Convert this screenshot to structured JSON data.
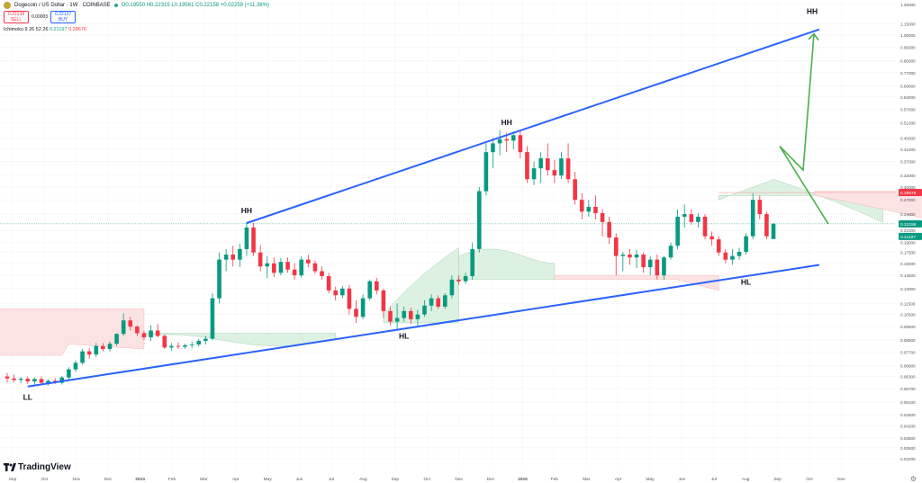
{
  "header": {
    "symbol": "Dogecoin / US Dollar · 1W · COINBASE",
    "ohlc": "O0.19550 H0.22315 L0.19561 C0.22158 +0.02259 (+11.36%)"
  },
  "trade": {
    "sell_price": "0.22134",
    "sell_label": "SELL",
    "spread": "0.00003",
    "buy_price": "0.22137",
    "buy_label": "BUY"
  },
  "indicator": {
    "name": "Ichimoku 9 26 52 26",
    "value1": "0.21197",
    "value2": "0.28676"
  },
  "brand": "TradingView",
  "colors": {
    "up": "#089981",
    "down": "#f23645",
    "trendline": "#2962ff",
    "arrow": "#4caf50",
    "cloud_bull": "#d7efdd",
    "cloud_bear": "#fbdede"
  },
  "chart_data": {
    "type": "candlestick",
    "y_scale": "log",
    "y_ticks": [
      "1.35000",
      "1.15000",
      "1.05000",
      "0.95000",
      "0.85000",
      "0.77000",
      "0.69000",
      "0.63000",
      "0.57000",
      "0.51000",
      "0.45000",
      "0.41000",
      "0.37000",
      "0.33000",
      "0.30000",
      "0.27000",
      "0.24000",
      "0.21000",
      "0.19000",
      "0.17500",
      "0.16000",
      "0.14500",
      "0.13000",
      "0.11500",
      "0.10500",
      "0.09500",
      "0.08500",
      "0.07700",
      "0.06900",
      "0.06300",
      "0.05700",
      "0.05100",
      "0.04600",
      "0.04200",
      "0.03800",
      "0.03500",
      "0.03200"
    ],
    "x_ticks": [
      "Sep",
      "Oct",
      "Nov",
      "Dec",
      "2024",
      "Feb",
      "Mar",
      "Apr",
      "May",
      "Jun",
      "Jul",
      "Aug",
      "Sep",
      "Oct",
      "Nov",
      "Dec",
      "2025",
      "Feb",
      "Mar",
      "Apr",
      "May",
      "Jun",
      "Jul",
      "Aug",
      "Sep",
      "Oct",
      "Nov"
    ],
    "price_labels": [
      {
        "value": "0.28676",
        "kind": "lead2"
      },
      {
        "value": "0.22158",
        "kind": "current"
      },
      {
        "value": "0.21197",
        "kind": "lead1"
      }
    ],
    "annotations": [
      "LL",
      "HH",
      "HL",
      "HH",
      "HL",
      "HH"
    ],
    "candles": [
      {
        "o": 0.063,
        "h": 0.0648,
        "l": 0.06,
        "c": 0.062
      },
      {
        "o": 0.062,
        "h": 0.064,
        "l": 0.06,
        "c": 0.0612
      },
      {
        "o": 0.0612,
        "h": 0.0628,
        "l": 0.0595,
        "c": 0.0618
      },
      {
        "o": 0.0618,
        "h": 0.063,
        "l": 0.0592,
        "c": 0.0605
      },
      {
        "o": 0.0605,
        "h": 0.0625,
        "l": 0.059,
        "c": 0.0617
      },
      {
        "o": 0.0617,
        "h": 0.063,
        "l": 0.0588,
        "c": 0.0598
      },
      {
        "o": 0.0598,
        "h": 0.0615,
        "l": 0.0585,
        "c": 0.0608
      },
      {
        "o": 0.0608,
        "h": 0.0622,
        "l": 0.0592,
        "c": 0.0598
      },
      {
        "o": 0.0598,
        "h": 0.0632,
        "l": 0.059,
        "c": 0.0625
      },
      {
        "o": 0.0625,
        "h": 0.068,
        "l": 0.0612,
        "c": 0.0668
      },
      {
        "o": 0.0668,
        "h": 0.072,
        "l": 0.0655,
        "c": 0.0705
      },
      {
        "o": 0.0705,
        "h": 0.079,
        "l": 0.0695,
        "c": 0.0775
      },
      {
        "o": 0.0775,
        "h": 0.0795,
        "l": 0.073,
        "c": 0.0755
      },
      {
        "o": 0.0755,
        "h": 0.083,
        "l": 0.074,
        "c": 0.081
      },
      {
        "o": 0.081,
        "h": 0.083,
        "l": 0.0775,
        "c": 0.079
      },
      {
        "o": 0.079,
        "h": 0.084,
        "l": 0.0775,
        "c": 0.0825
      },
      {
        "o": 0.0825,
        "h": 0.09,
        "l": 0.081,
        "c": 0.0895
      },
      {
        "o": 0.0895,
        "h": 0.106,
        "l": 0.088,
        "c": 0.1
      },
      {
        "o": 0.1,
        "h": 0.103,
        "l": 0.092,
        "c": 0.095
      },
      {
        "o": 0.095,
        "h": 0.096,
        "l": 0.088,
        "c": 0.09
      },
      {
        "o": 0.09,
        "h": 0.092,
        "l": 0.085,
        "c": 0.087
      },
      {
        "o": 0.087,
        "h": 0.096,
        "l": 0.0845,
        "c": 0.092
      },
      {
        "o": 0.092,
        "h": 0.097,
        "l": 0.087,
        "c": 0.088
      },
      {
        "o": 0.088,
        "h": 0.089,
        "l": 0.079,
        "c": 0.08
      },
      {
        "o": 0.08,
        "h": 0.083,
        "l": 0.078,
        "c": 0.081
      },
      {
        "o": 0.081,
        "h": 0.0835,
        "l": 0.079,
        "c": 0.0805
      },
      {
        "o": 0.0805,
        "h": 0.0825,
        "l": 0.079,
        "c": 0.0815
      },
      {
        "o": 0.0815,
        "h": 0.084,
        "l": 0.0795,
        "c": 0.082
      },
      {
        "o": 0.082,
        "h": 0.086,
        "l": 0.0805,
        "c": 0.0845
      },
      {
        "o": 0.0845,
        "h": 0.088,
        "l": 0.082,
        "c": 0.086
      },
      {
        "o": 0.086,
        "h": 0.125,
        "l": 0.085,
        "c": 0.12
      },
      {
        "o": 0.12,
        "h": 0.175,
        "l": 0.115,
        "c": 0.165
      },
      {
        "o": 0.165,
        "h": 0.18,
        "l": 0.15,
        "c": 0.172
      },
      {
        "o": 0.172,
        "h": 0.185,
        "l": 0.156,
        "c": 0.165
      },
      {
        "o": 0.165,
        "h": 0.188,
        "l": 0.155,
        "c": 0.18
      },
      {
        "o": 0.18,
        "h": 0.225,
        "l": 0.17,
        "c": 0.215
      },
      {
        "o": 0.215,
        "h": 0.223,
        "l": 0.17,
        "c": 0.175
      },
      {
        "o": 0.175,
        "h": 0.186,
        "l": 0.15,
        "c": 0.156
      },
      {
        "o": 0.156,
        "h": 0.17,
        "l": 0.142,
        "c": 0.16
      },
      {
        "o": 0.16,
        "h": 0.168,
        "l": 0.143,
        "c": 0.148
      },
      {
        "o": 0.148,
        "h": 0.167,
        "l": 0.145,
        "c": 0.162
      },
      {
        "o": 0.162,
        "h": 0.168,
        "l": 0.148,
        "c": 0.152
      },
      {
        "o": 0.152,
        "h": 0.16,
        "l": 0.14,
        "c": 0.145
      },
      {
        "o": 0.145,
        "h": 0.17,
        "l": 0.142,
        "c": 0.165
      },
      {
        "o": 0.165,
        "h": 0.172,
        "l": 0.155,
        "c": 0.16
      },
      {
        "o": 0.16,
        "h": 0.164,
        "l": 0.147,
        "c": 0.15
      },
      {
        "o": 0.15,
        "h": 0.156,
        "l": 0.14,
        "c": 0.144
      },
      {
        "o": 0.144,
        "h": 0.148,
        "l": 0.125,
        "c": 0.128
      },
      {
        "o": 0.128,
        "h": 0.132,
        "l": 0.118,
        "c": 0.123
      },
      {
        "o": 0.123,
        "h": 0.133,
        "l": 0.12,
        "c": 0.13
      },
      {
        "o": 0.13,
        "h": 0.134,
        "l": 0.105,
        "c": 0.11
      },
      {
        "o": 0.11,
        "h": 0.118,
        "l": 0.098,
        "c": 0.103
      },
      {
        "o": 0.103,
        "h": 0.124,
        "l": 0.101,
        "c": 0.12
      },
      {
        "o": 0.12,
        "h": 0.14,
        "l": 0.118,
        "c": 0.138
      },
      {
        "o": 0.138,
        "h": 0.142,
        "l": 0.124,
        "c": 0.128
      },
      {
        "o": 0.128,
        "h": 0.13,
        "l": 0.102,
        "c": 0.108
      },
      {
        "o": 0.108,
        "h": 0.112,
        "l": 0.096,
        "c": 0.099
      },
      {
        "o": 0.099,
        "h": 0.115,
        "l": 0.093,
        "c": 0.102
      },
      {
        "o": 0.102,
        "h": 0.112,
        "l": 0.099,
        "c": 0.108
      },
      {
        "o": 0.108,
        "h": 0.111,
        "l": 0.097,
        "c": 0.101
      },
      {
        "o": 0.101,
        "h": 0.109,
        "l": 0.095,
        "c": 0.105
      },
      {
        "o": 0.105,
        "h": 0.118,
        "l": 0.103,
        "c": 0.113
      },
      {
        "o": 0.113,
        "h": 0.124,
        "l": 0.108,
        "c": 0.12
      },
      {
        "o": 0.12,
        "h": 0.123,
        "l": 0.11,
        "c": 0.112
      },
      {
        "o": 0.112,
        "h": 0.125,
        "l": 0.11,
        "c": 0.123
      },
      {
        "o": 0.123,
        "h": 0.145,
        "l": 0.12,
        "c": 0.14
      },
      {
        "o": 0.14,
        "h": 0.145,
        "l": 0.134,
        "c": 0.138
      },
      {
        "o": 0.138,
        "h": 0.148,
        "l": 0.135,
        "c": 0.144
      },
      {
        "o": 0.144,
        "h": 0.19,
        "l": 0.14,
        "c": 0.18
      },
      {
        "o": 0.18,
        "h": 0.3,
        "l": 0.175,
        "c": 0.29
      },
      {
        "o": 0.29,
        "h": 0.43,
        "l": 0.28,
        "c": 0.4
      },
      {
        "o": 0.4,
        "h": 0.45,
        "l": 0.35,
        "c": 0.43
      },
      {
        "o": 0.43,
        "h": 0.48,
        "l": 0.39,
        "c": 0.445
      },
      {
        "o": 0.445,
        "h": 0.47,
        "l": 0.4,
        "c": 0.44
      },
      {
        "o": 0.44,
        "h": 0.475,
        "l": 0.41,
        "c": 0.46
      },
      {
        "o": 0.46,
        "h": 0.48,
        "l": 0.38,
        "c": 0.4
      },
      {
        "o": 0.4,
        "h": 0.42,
        "l": 0.31,
        "c": 0.32
      },
      {
        "o": 0.32,
        "h": 0.37,
        "l": 0.305,
        "c": 0.35
      },
      {
        "o": 0.35,
        "h": 0.4,
        "l": 0.31,
        "c": 0.38
      },
      {
        "o": 0.38,
        "h": 0.43,
        "l": 0.33,
        "c": 0.345
      },
      {
        "o": 0.345,
        "h": 0.375,
        "l": 0.31,
        "c": 0.33
      },
      {
        "o": 0.33,
        "h": 0.4,
        "l": 0.32,
        "c": 0.38
      },
      {
        "o": 0.38,
        "h": 0.43,
        "l": 0.31,
        "c": 0.32
      },
      {
        "o": 0.32,
        "h": 0.34,
        "l": 0.26,
        "c": 0.27
      },
      {
        "o": 0.27,
        "h": 0.285,
        "l": 0.23,
        "c": 0.245
      },
      {
        "o": 0.245,
        "h": 0.27,
        "l": 0.235,
        "c": 0.255
      },
      {
        "o": 0.255,
        "h": 0.28,
        "l": 0.23,
        "c": 0.242
      },
      {
        "o": 0.242,
        "h": 0.25,
        "l": 0.2,
        "c": 0.225
      },
      {
        "o": 0.225,
        "h": 0.235,
        "l": 0.188,
        "c": 0.198
      },
      {
        "o": 0.198,
        "h": 0.205,
        "l": 0.145,
        "c": 0.17
      },
      {
        "o": 0.17,
        "h": 0.176,
        "l": 0.15,
        "c": 0.172
      },
      {
        "o": 0.172,
        "h": 0.18,
        "l": 0.158,
        "c": 0.168
      },
      {
        "o": 0.168,
        "h": 0.179,
        "l": 0.154,
        "c": 0.172
      },
      {
        "o": 0.172,
        "h": 0.175,
        "l": 0.148,
        "c": 0.155
      },
      {
        "o": 0.155,
        "h": 0.17,
        "l": 0.145,
        "c": 0.165
      },
      {
        "o": 0.165,
        "h": 0.172,
        "l": 0.14,
        "c": 0.145
      },
      {
        "o": 0.145,
        "h": 0.17,
        "l": 0.14,
        "c": 0.168
      },
      {
        "o": 0.168,
        "h": 0.19,
        "l": 0.165,
        "c": 0.185
      },
      {
        "o": 0.185,
        "h": 0.25,
        "l": 0.18,
        "c": 0.235
      },
      {
        "o": 0.235,
        "h": 0.26,
        "l": 0.215,
        "c": 0.24
      },
      {
        "o": 0.24,
        "h": 0.25,
        "l": 0.22,
        "c": 0.225
      },
      {
        "o": 0.225,
        "h": 0.242,
        "l": 0.215,
        "c": 0.235
      },
      {
        "o": 0.235,
        "h": 0.24,
        "l": 0.195,
        "c": 0.2
      },
      {
        "o": 0.2,
        "h": 0.208,
        "l": 0.185,
        "c": 0.195
      },
      {
        "o": 0.195,
        "h": 0.2,
        "l": 0.17,
        "c": 0.175
      },
      {
        "o": 0.175,
        "h": 0.18,
        "l": 0.16,
        "c": 0.165
      },
      {
        "o": 0.165,
        "h": 0.18,
        "l": 0.158,
        "c": 0.17
      },
      {
        "o": 0.17,
        "h": 0.182,
        "l": 0.165,
        "c": 0.176
      },
      {
        "o": 0.176,
        "h": 0.205,
        "l": 0.172,
        "c": 0.2
      },
      {
        "o": 0.2,
        "h": 0.285,
        "l": 0.195,
        "c": 0.27
      },
      {
        "o": 0.27,
        "h": 0.28,
        "l": 0.23,
        "c": 0.24
      },
      {
        "o": 0.24,
        "h": 0.245,
        "l": 0.195,
        "c": 0.2
      },
      {
        "o": 0.1955,
        "h": 0.2232,
        "l": 0.1956,
        "c": 0.2216
      }
    ]
  }
}
